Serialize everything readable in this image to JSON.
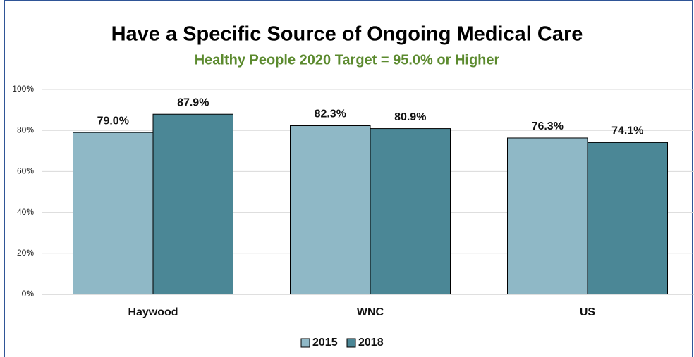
{
  "chart_data": {
    "type": "bar",
    "title": "Have a Specific Source of Ongoing Medical Care",
    "subtitle": "Healthy People 2020 Target = 95.0% or Higher",
    "categories": [
      "Haywood",
      "WNC",
      "US"
    ],
    "series": [
      {
        "name": "2015",
        "color": "#8fb8c6",
        "values": [
          79.0,
          82.3,
          76.3
        ],
        "value_labels": [
          "79.0%",
          "82.3%",
          "76.3%"
        ]
      },
      {
        "name": "2018",
        "color": "#4b8796",
        "values": [
          87.9,
          80.9,
          74.1
        ],
        "value_labels": [
          "87.9%",
          "80.9%",
          "74.1%"
        ]
      }
    ],
    "ylim": [
      0,
      100
    ],
    "yticks": [
      {
        "value": 0,
        "label": "0%"
      },
      {
        "value": 20,
        "label": "20%"
      },
      {
        "value": 40,
        "label": "40%"
      },
      {
        "value": 60,
        "label": "60%"
      },
      {
        "value": 80,
        "label": "80%"
      },
      {
        "value": 100,
        "label": "100%"
      }
    ],
    "grid": true,
    "legend": "bottom"
  }
}
